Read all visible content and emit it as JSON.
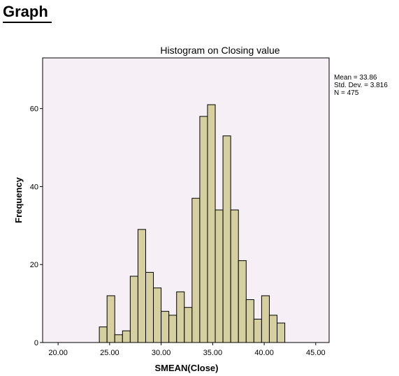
{
  "page": {
    "heading": "Graph"
  },
  "chart_data": {
    "type": "bar",
    "title": "Histogram on Closing value",
    "xlabel": "SMEAN(Close)",
    "ylabel": "Frequency",
    "xlim": [
      18.5,
      46.3
    ],
    "ylim": [
      0,
      73
    ],
    "x_ticks": [
      "20.00",
      "25.00",
      "30.00",
      "35.00",
      "40.00",
      "45.00"
    ],
    "x_tick_values": [
      20,
      25,
      30,
      35,
      40,
      45
    ],
    "y_ticks": [
      "0",
      "20",
      "40",
      "60"
    ],
    "y_tick_values": [
      0,
      20,
      40,
      60
    ],
    "bin_width": 0.75,
    "bins": [
      {
        "start": 24.0,
        "count": 4
      },
      {
        "start": 24.75,
        "count": 12
      },
      {
        "start": 25.5,
        "count": 2
      },
      {
        "start": 26.25,
        "count": 3
      },
      {
        "start": 27.0,
        "count": 17
      },
      {
        "start": 27.75,
        "count": 29
      },
      {
        "start": 28.5,
        "count": 18
      },
      {
        "start": 29.25,
        "count": 14
      },
      {
        "start": 30.0,
        "count": 8
      },
      {
        "start": 30.75,
        "count": 7
      },
      {
        "start": 31.5,
        "count": 13
      },
      {
        "start": 32.25,
        "count": 9
      },
      {
        "start": 33.0,
        "count": 37
      },
      {
        "start": 33.75,
        "count": 58
      },
      {
        "start": 34.5,
        "count": 61
      },
      {
        "start": 35.25,
        "count": 34
      },
      {
        "start": 36.0,
        "count": 53
      },
      {
        "start": 36.75,
        "count": 34
      },
      {
        "start": 37.5,
        "count": 21
      },
      {
        "start": 38.25,
        "count": 11
      },
      {
        "start": 39.0,
        "count": 6
      },
      {
        "start": 39.75,
        "count": 12
      },
      {
        "start": 40.5,
        "count": 7
      },
      {
        "start": 41.25,
        "count": 5
      }
    ],
    "stats": {
      "mean": "Mean = 33.86",
      "std_dev": "Std. Dev. = 3.816",
      "n": "N = 475"
    },
    "colors": {
      "plot_background": "#f6f0f6",
      "bar_fill": "#d6cfa0",
      "bar_stroke": "#000000"
    },
    "grid": false
  }
}
